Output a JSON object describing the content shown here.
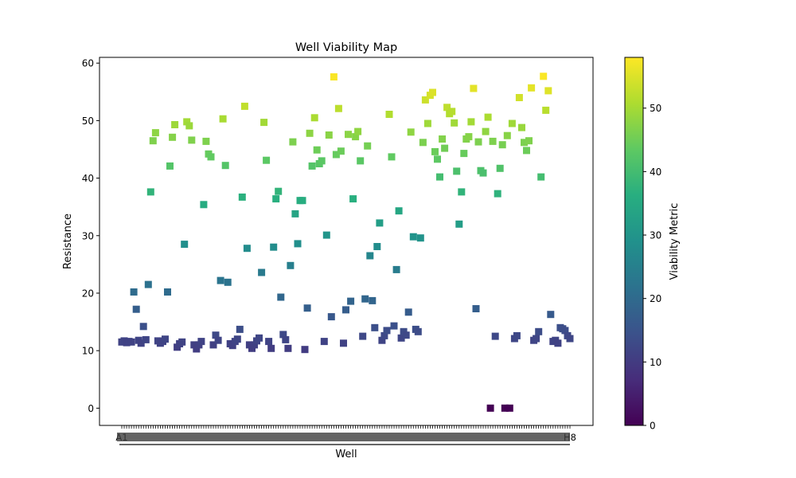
{
  "chart_data": {
    "type": "scatter",
    "title": "Well Viability Map",
    "xlabel": "Well",
    "ylabel": "Resistance",
    "ylim": [
      -3,
      61
    ],
    "yticks": [
      0,
      10,
      20,
      30,
      40,
      50,
      60
    ],
    "marker": "square",
    "grid": false,
    "legend": "none",
    "x_tick_labels_note": "A1 … H8 (overlapping, illegible)",
    "x_tick_label_first": "A1",
    "x_tick_label_last": "H8",
    "colorbar": {
      "label": "Viability Metric",
      "range": [
        0,
        58
      ],
      "ticks": [
        0,
        10,
        20,
        30,
        40,
        50
      ],
      "colormap": "viridis"
    },
    "series": [
      {
        "values": [
          11.5,
          11.7,
          11.4,
          11.6,
          11.5,
          20.2,
          17.2,
          11.8,
          11.3,
          14.2,
          11.9,
          21.5,
          37.6,
          46.5,
          47.9,
          11.7,
          11.3,
          11.6,
          12.0,
          20.2,
          42.1,
          47.1,
          49.3,
          10.6,
          11.2,
          11.5,
          28.5,
          49.8,
          49.1,
          46.6,
          11.0,
          10.3,
          11.0,
          11.6,
          35.4,
          46.4,
          44.2,
          43.7,
          11.0,
          12.7,
          11.8,
          22.2,
          50.3,
          42.2,
          21.9,
          11.2,
          10.9,
          11.6,
          12.0,
          13.7,
          36.7,
          52.5,
          27.8,
          11.0,
          10.4,
          11.0,
          11.7,
          12.2,
          23.6,
          49.7,
          43.1,
          11.6,
          10.4,
          28.0,
          36.4,
          37.7,
          19.3,
          12.8,
          11.9,
          10.4,
          24.8,
          46.3,
          33.8,
          28.6,
          36.1,
          36.1,
          10.2,
          17.4,
          47.8,
          42.1,
          50.5,
          44.9,
          42.5,
          43.0,
          11.6,
          30.1,
          47.5,
          15.9,
          57.6,
          44.1,
          52.1,
          44.7,
          11.3,
          17.1,
          47.6,
          18.6,
          36.4,
          47.2,
          48.1,
          43.0,
          12.5,
          19.0,
          45.6,
          26.5,
          18.7,
          14.0,
          28.1,
          32.2,
          11.8,
          12.6,
          13.5,
          51.1,
          43.7,
          14.3,
          24.1,
          34.3,
          12.2,
          13.3,
          12.7,
          16.7,
          48.0,
          29.8,
          13.7,
          13.3,
          29.6,
          46.2,
          53.6,
          49.5,
          54.4,
          54.9,
          44.6,
          43.3,
          40.2,
          46.8,
          45.2,
          52.3,
          51.2,
          51.6,
          49.6,
          41.2,
          32.0,
          37.6,
          44.3,
          46.8,
          47.2,
          49.8,
          55.6,
          17.3,
          46.3,
          41.3,
          40.9,
          48.1,
          50.6,
          0.0,
          46.4,
          12.5,
          37.3,
          41.7,
          45.8,
          0.0,
          47.4,
          0.0,
          49.5,
          12.1,
          12.6,
          54.0,
          48.8,
          46.2,
          44.8,
          46.5,
          55.7,
          11.8,
          12.1,
          13.3,
          40.2,
          57.7,
          51.8,
          55.2,
          16.3,
          11.6,
          11.8,
          11.3,
          14.0,
          13.8,
          13.5,
          12.6,
          12.1
        ]
      }
    ]
  }
}
